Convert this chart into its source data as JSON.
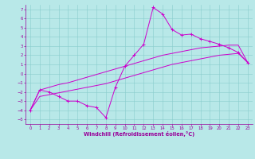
{
  "bg_color": "#b8e8e8",
  "line_color": "#cc00cc",
  "grid_color": "#88cccc",
  "xlabel": "Windchill (Refroidissement éolien,°C)",
  "xlabel_color": "#990099",
  "tick_color": "#990099",
  "xlim": [
    -0.5,
    23.5
  ],
  "ylim": [
    -5.5,
    7.5
  ],
  "xticks": [
    0,
    1,
    2,
    3,
    4,
    5,
    6,
    7,
    8,
    9,
    10,
    11,
    12,
    13,
    14,
    15,
    16,
    17,
    18,
    19,
    20,
    21,
    22,
    23
  ],
  "yticks": [
    -5,
    -4,
    -3,
    -2,
    -1,
    0,
    1,
    2,
    3,
    4,
    5,
    6,
    7
  ],
  "line1_x": [
    0,
    1,
    2,
    3,
    4,
    5,
    6,
    7,
    8,
    9,
    10,
    11,
    12,
    13,
    14,
    15,
    16,
    17,
    18,
    19,
    20,
    21,
    22,
    23
  ],
  "line1_y": [
    -4,
    -1.8,
    -2,
    -2.5,
    -3,
    -3,
    -3.5,
    -3.7,
    -4.8,
    -1.5,
    0.8,
    2.0,
    3.2,
    7.2,
    6.5,
    4.8,
    4.2,
    4.3,
    3.8,
    3.5,
    3.2,
    2.8,
    2.3,
    1.2
  ],
  "line2_x": [
    0,
    1,
    2,
    3,
    4,
    5,
    6,
    7,
    8,
    9,
    10,
    11,
    12,
    13,
    14,
    15,
    16,
    17,
    18,
    19,
    20,
    21,
    22,
    23
  ],
  "line2_y": [
    -4,
    -1.8,
    -1.5,
    -1.2,
    -1.0,
    -0.7,
    -0.4,
    -0.1,
    0.2,
    0.5,
    0.8,
    1.1,
    1.4,
    1.7,
    2.0,
    2.2,
    2.4,
    2.6,
    2.8,
    2.9,
    3.0,
    3.1,
    3.1,
    1.2
  ],
  "line3_x": [
    0,
    1,
    2,
    3,
    4,
    5,
    6,
    7,
    8,
    9,
    10,
    11,
    12,
    13,
    14,
    15,
    16,
    17,
    18,
    19,
    20,
    21,
    22,
    23
  ],
  "line3_y": [
    -4,
    -2.5,
    -2.3,
    -2.1,
    -1.9,
    -1.7,
    -1.5,
    -1.3,
    -1.1,
    -0.8,
    -0.5,
    -0.2,
    0.1,
    0.4,
    0.7,
    1.0,
    1.2,
    1.4,
    1.6,
    1.8,
    2.0,
    2.1,
    2.2,
    1.2
  ]
}
